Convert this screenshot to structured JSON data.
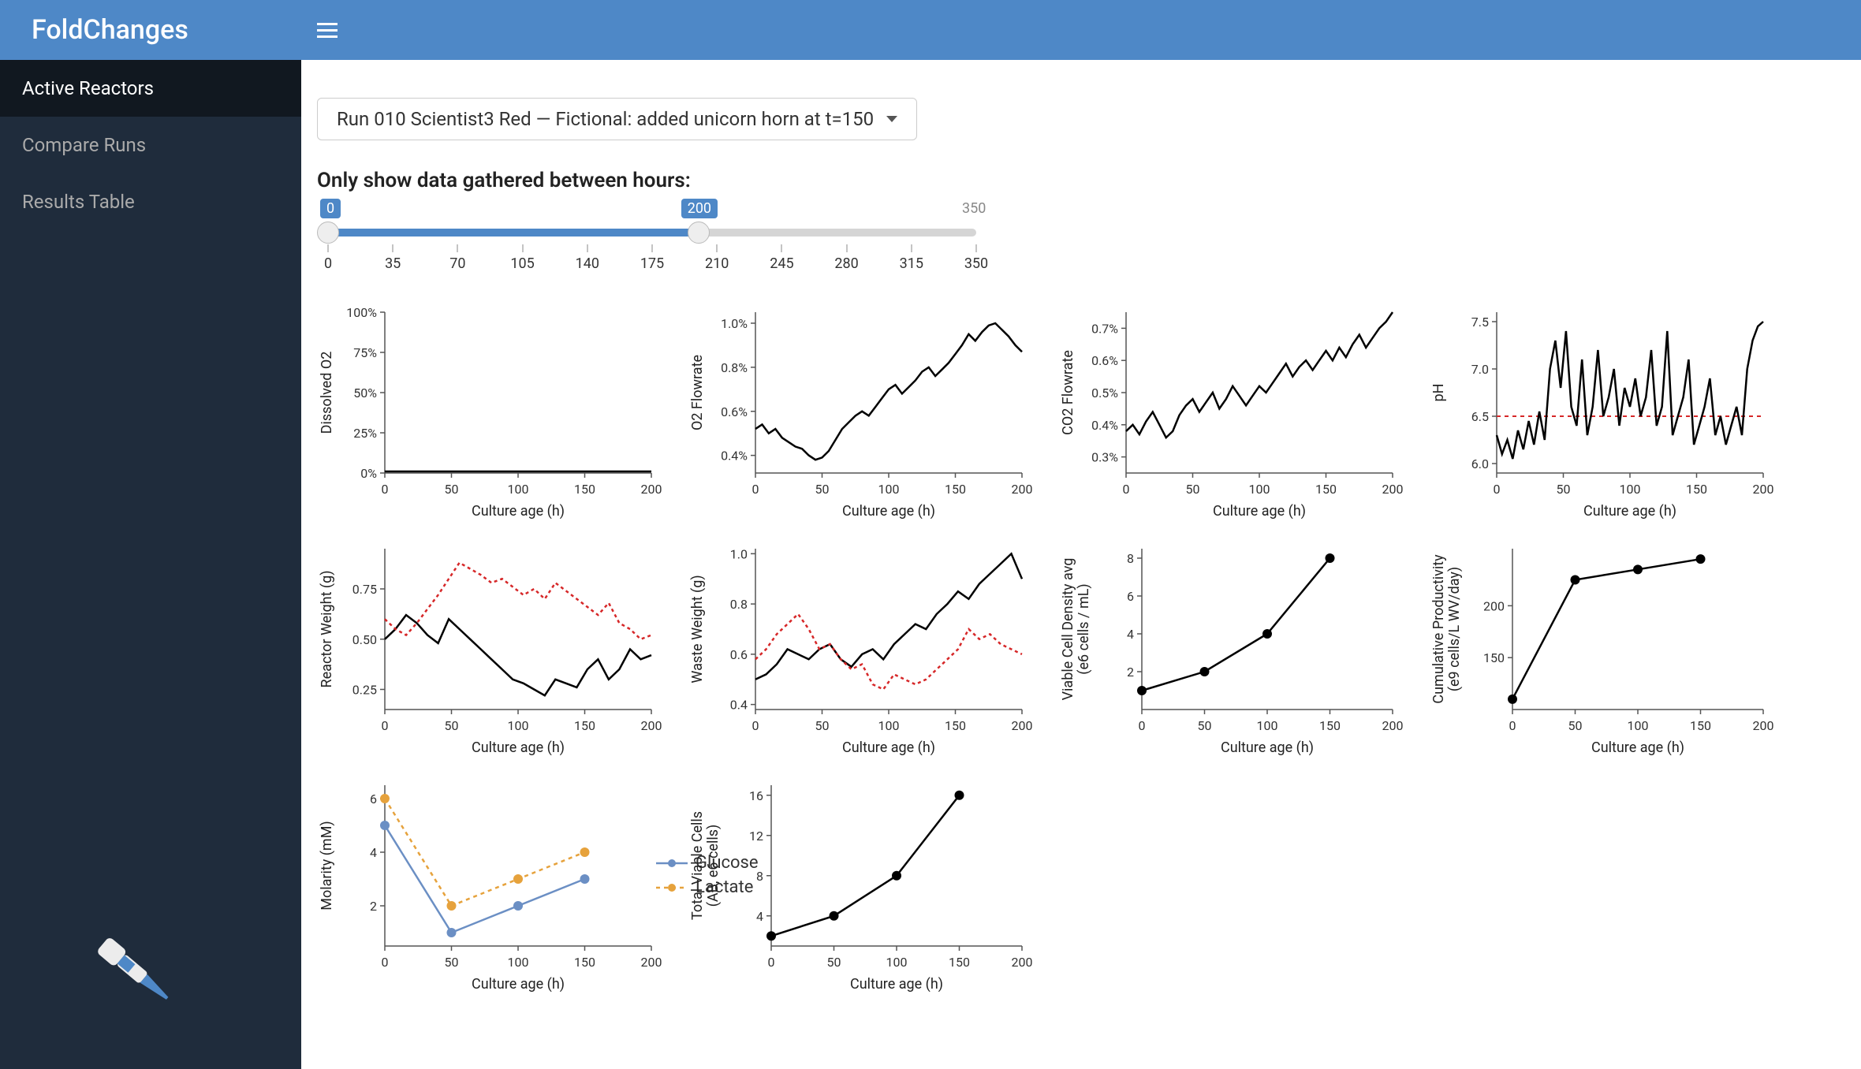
{
  "brand": "FoldChanges",
  "nav": {
    "items": [
      {
        "label": "Active Reactors",
        "active": true
      },
      {
        "label": "Compare Runs",
        "active": false
      },
      {
        "label": "Results Table",
        "active": false
      }
    ]
  },
  "dropdown": {
    "selected": "Run 010 Scientist3 Red — Fictional: added unicorn horn at t=150"
  },
  "slider": {
    "label": "Only show data gathered between hours:",
    "min": 0,
    "max": 350,
    "low": 0,
    "high": 200,
    "ticks": [
      0,
      35,
      70,
      105,
      140,
      175,
      210,
      245,
      280,
      315,
      350
    ]
  },
  "colors": {
    "primary": "#4e88c7",
    "sidebar_bg": "#1f2c3c",
    "sidebar_active": "#111820",
    "text": "#222222",
    "grid": "#dddddd",
    "axis": "#555555",
    "series_black": "#000000",
    "series_red": "#d62728",
    "series_blue": "#6b8fc4",
    "series_orange": "#e6a23c",
    "marker": "#000000"
  },
  "chart_common": {
    "xlabel": "Culture age (h)",
    "xlim": [
      0,
      200
    ],
    "xticks": [
      0,
      50,
      100,
      150,
      200
    ],
    "label_fontsize": 18,
    "tick_fontsize": 16,
    "line_width": 2.5,
    "grid": false,
    "background": "#ffffff"
  },
  "charts": [
    {
      "id": "dissolved_o2",
      "ylabel": "Dissolved O2",
      "ylim": [
        0,
        100
      ],
      "yticks": [
        0,
        25,
        50,
        75,
        100
      ],
      "ytick_fmt": "pct",
      "series": [
        {
          "color": "#000000",
          "dash": null,
          "x": [
            0,
            50,
            100,
            150,
            200
          ],
          "y": [
            1,
            1,
            1,
            1,
            1
          ]
        }
      ]
    },
    {
      "id": "o2_flowrate",
      "ylabel": "O2 Flowrate",
      "ylim": [
        0.32,
        1.05
      ],
      "yticks": [
        0.4,
        0.6,
        0.8,
        1.0
      ],
      "ytick_fmt": "pct1",
      "series": [
        {
          "color": "#000000",
          "dash": null,
          "x": [
            0,
            5,
            10,
            15,
            20,
            25,
            30,
            35,
            40,
            45,
            50,
            55,
            60,
            65,
            70,
            75,
            80,
            85,
            90,
            95,
            100,
            105,
            110,
            115,
            120,
            125,
            130,
            135,
            140,
            145,
            150,
            155,
            160,
            165,
            170,
            175,
            180,
            185,
            190,
            195,
            200
          ],
          "y": [
            0.52,
            0.54,
            0.5,
            0.52,
            0.48,
            0.46,
            0.44,
            0.43,
            0.4,
            0.38,
            0.39,
            0.42,
            0.47,
            0.52,
            0.55,
            0.58,
            0.6,
            0.58,
            0.62,
            0.66,
            0.7,
            0.72,
            0.68,
            0.71,
            0.74,
            0.78,
            0.8,
            0.76,
            0.79,
            0.82,
            0.86,
            0.9,
            0.95,
            0.92,
            0.96,
            0.99,
            1.0,
            0.97,
            0.94,
            0.9,
            0.87
          ]
        }
      ]
    },
    {
      "id": "co2_flowrate",
      "ylabel": "CO2 Flowrate",
      "ylim": [
        0.25,
        0.75
      ],
      "yticks": [
        0.3,
        0.4,
        0.5,
        0.6,
        0.7
      ],
      "ytick_fmt": "pct1",
      "series": [
        {
          "color": "#000000",
          "dash": null,
          "x": [
            0,
            5,
            10,
            15,
            20,
            25,
            30,
            35,
            40,
            45,
            50,
            55,
            60,
            65,
            70,
            75,
            80,
            85,
            90,
            95,
            100,
            105,
            110,
            115,
            120,
            125,
            130,
            135,
            140,
            145,
            150,
            155,
            160,
            165,
            170,
            175,
            180,
            185,
            190,
            195,
            200
          ],
          "y": [
            0.38,
            0.4,
            0.37,
            0.41,
            0.44,
            0.4,
            0.36,
            0.38,
            0.43,
            0.46,
            0.48,
            0.44,
            0.47,
            0.5,
            0.45,
            0.48,
            0.52,
            0.49,
            0.46,
            0.49,
            0.52,
            0.5,
            0.53,
            0.56,
            0.59,
            0.55,
            0.58,
            0.6,
            0.57,
            0.6,
            0.63,
            0.6,
            0.64,
            0.61,
            0.65,
            0.68,
            0.64,
            0.67,
            0.7,
            0.72,
            0.75
          ]
        }
      ]
    },
    {
      "id": "ph",
      "ylabel": "pH",
      "ylim": [
        5.9,
        7.6
      ],
      "yticks": [
        6.0,
        6.5,
        7.0,
        7.5
      ],
      "ytick_fmt": "dec1",
      "hline": {
        "y": 6.5,
        "color": "#d62728",
        "dash": "5,5"
      },
      "series": [
        {
          "color": "#000000",
          "dash": null,
          "x": [
            0,
            4,
            8,
            12,
            16,
            20,
            24,
            28,
            32,
            36,
            40,
            44,
            48,
            52,
            56,
            60,
            64,
            68,
            72,
            76,
            80,
            84,
            88,
            92,
            96,
            100,
            104,
            108,
            112,
            116,
            120,
            124,
            128,
            132,
            136,
            140,
            144,
            148,
            152,
            156,
            160,
            164,
            168,
            172,
            176,
            180,
            184,
            188,
            192,
            196,
            200
          ],
          "y": [
            6.3,
            6.1,
            6.25,
            6.05,
            6.35,
            6.15,
            6.45,
            6.2,
            6.55,
            6.25,
            7.0,
            7.3,
            6.8,
            7.4,
            6.6,
            6.4,
            7.1,
            6.3,
            6.6,
            7.2,
            6.5,
            6.7,
            7.0,
            6.4,
            6.8,
            6.6,
            6.9,
            6.5,
            6.7,
            7.2,
            6.4,
            6.6,
            7.4,
            6.3,
            6.5,
            6.7,
            7.1,
            6.2,
            6.4,
            6.6,
            6.9,
            6.3,
            6.5,
            6.2,
            6.4,
            6.6,
            6.3,
            7.0,
            7.3,
            7.45,
            7.5
          ]
        }
      ]
    },
    {
      "id": "reactor_weight",
      "ylabel": "Reactor Weight (g)",
      "ylim": [
        0.15,
        0.95
      ],
      "yticks": [
        0.25,
        0.5,
        0.75
      ],
      "ytick_fmt": "dec2",
      "series": [
        {
          "color": "#000000",
          "dash": null,
          "x": [
            0,
            8,
            16,
            24,
            32,
            40,
            48,
            56,
            64,
            72,
            80,
            88,
            96,
            104,
            112,
            120,
            128,
            136,
            144,
            152,
            160,
            168,
            176,
            184,
            192,
            200
          ],
          "y": [
            0.5,
            0.55,
            0.62,
            0.58,
            0.52,
            0.48,
            0.6,
            0.55,
            0.5,
            0.45,
            0.4,
            0.35,
            0.3,
            0.28,
            0.25,
            0.22,
            0.3,
            0.28,
            0.26,
            0.35,
            0.4,
            0.3,
            0.35,
            0.45,
            0.4,
            0.42
          ]
        },
        {
          "color": "#d62728",
          "dash": "4,4",
          "x": [
            0,
            8,
            16,
            24,
            32,
            40,
            48,
            56,
            64,
            72,
            80,
            88,
            96,
            104,
            112,
            120,
            128,
            136,
            144,
            152,
            160,
            168,
            176,
            184,
            192,
            200
          ],
          "y": [
            0.6,
            0.55,
            0.52,
            0.58,
            0.65,
            0.72,
            0.8,
            0.88,
            0.85,
            0.82,
            0.78,
            0.8,
            0.76,
            0.72,
            0.75,
            0.7,
            0.78,
            0.74,
            0.7,
            0.66,
            0.62,
            0.68,
            0.58,
            0.55,
            0.5,
            0.52
          ]
        }
      ]
    },
    {
      "id": "waste_weight",
      "ylabel": "Waste Weight (g)",
      "ylim": [
        0.38,
        1.02
      ],
      "yticks": [
        0.4,
        0.6,
        0.8,
        1.0
      ],
      "ytick_fmt": "dec1",
      "series": [
        {
          "color": "#000000",
          "dash": null,
          "x": [
            0,
            8,
            16,
            24,
            32,
            40,
            48,
            56,
            64,
            72,
            80,
            88,
            96,
            104,
            112,
            120,
            128,
            136,
            144,
            152,
            160,
            168,
            176,
            184,
            192,
            200
          ],
          "y": [
            0.5,
            0.52,
            0.56,
            0.62,
            0.6,
            0.58,
            0.62,
            0.64,
            0.58,
            0.55,
            0.6,
            0.62,
            0.58,
            0.64,
            0.68,
            0.72,
            0.7,
            0.76,
            0.8,
            0.85,
            0.82,
            0.88,
            0.92,
            0.96,
            1.0,
            0.9
          ]
        },
        {
          "color": "#d62728",
          "dash": "4,4",
          "x": [
            0,
            8,
            16,
            24,
            32,
            40,
            48,
            56,
            64,
            72,
            80,
            88,
            96,
            104,
            112,
            120,
            128,
            136,
            144,
            152,
            160,
            168,
            176,
            184,
            192,
            200
          ],
          "y": [
            0.58,
            0.62,
            0.68,
            0.72,
            0.76,
            0.7,
            0.62,
            0.64,
            0.58,
            0.54,
            0.56,
            0.48,
            0.46,
            0.52,
            0.5,
            0.48,
            0.5,
            0.54,
            0.58,
            0.62,
            0.7,
            0.66,
            0.68,
            0.64,
            0.62,
            0.6
          ]
        }
      ]
    },
    {
      "id": "vcd",
      "ylabel": "Viable Cell Density avg\n(e6 cells / mL)",
      "ylim": [
        0,
        8.5
      ],
      "yticks": [
        2,
        4,
        6,
        8
      ],
      "ytick_fmt": "int",
      "marker": true,
      "series": [
        {
          "color": "#000000",
          "dash": null,
          "x": [
            0,
            50,
            100,
            150
          ],
          "y": [
            1,
            2,
            4,
            8
          ]
        }
      ]
    },
    {
      "id": "cum_prod",
      "ylabel": "Cumulative Productivity\n(e9 cells/L WV/day)",
      "ylim": [
        100,
        255
      ],
      "yticks": [
        150,
        200
      ],
      "ytick_fmt": "int",
      "marker": true,
      "series": [
        {
          "color": "#000000",
          "dash": null,
          "x": [
            0,
            50,
            100,
            150
          ],
          "y": [
            110,
            225,
            235,
            245
          ]
        }
      ]
    },
    {
      "id": "molarity",
      "ylabel": "Molarity (mM)",
      "ylim": [
        0.5,
        6.5
      ],
      "yticks": [
        2,
        4,
        6
      ],
      "ytick_fmt": "int",
      "marker": true,
      "legend": true,
      "series": [
        {
          "name": "Glucose",
          "color": "#6b8fc4",
          "dash": null,
          "x": [
            0,
            50,
            100,
            150
          ],
          "y": [
            5,
            1,
            2,
            3
          ]
        },
        {
          "name": "Lactate",
          "color": "#e6a23c",
          "dash": "5,5",
          "x": [
            0,
            50,
            100,
            150
          ],
          "y": [
            6,
            2,
            3,
            4
          ]
        }
      ]
    },
    {
      "id": "total_viable",
      "ylabel": "Total Viable Cells\n(AB, e6 cells)",
      "ylim": [
        1,
        17
      ],
      "yticks": [
        4,
        8,
        12,
        16
      ],
      "ytick_fmt": "int",
      "marker": true,
      "series": [
        {
          "color": "#000000",
          "dash": null,
          "x": [
            0,
            50,
            100,
            150
          ],
          "y": [
            2,
            4,
            8,
            16
          ]
        }
      ]
    }
  ],
  "legend_labels": {
    "glucose": "Glucose",
    "lactate": "Lactate"
  }
}
